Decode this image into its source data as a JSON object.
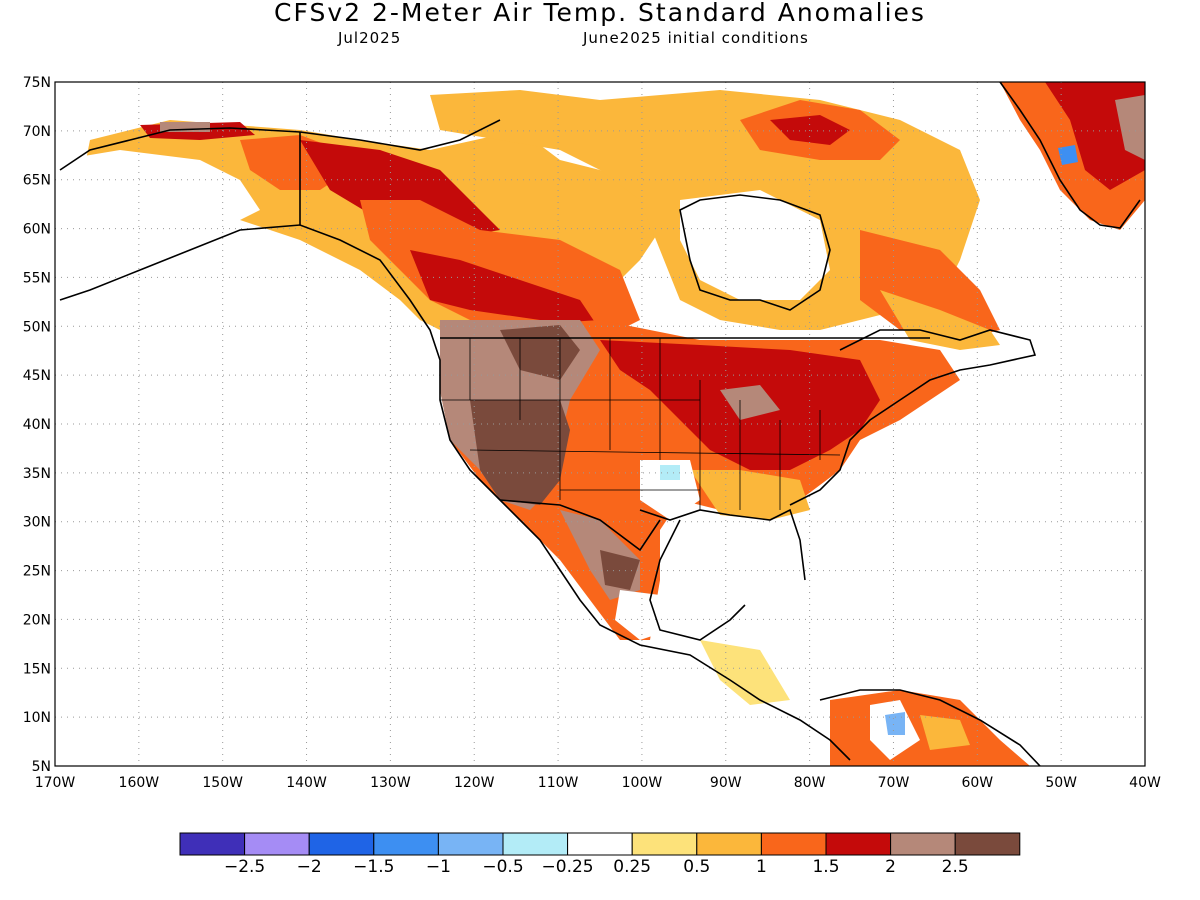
{
  "header": {
    "title": "CFSv2 2-Meter Air Temp. Standard Anomalies",
    "month": "Jul2025",
    "init": "June2025 initial conditions"
  },
  "axes": {
    "lat_labels": [
      "75N",
      "70N",
      "65N",
      "60N",
      "55N",
      "50N",
      "45N",
      "40N",
      "35N",
      "30N",
      "25N",
      "20N",
      "15N",
      "10N",
      "5N"
    ],
    "lon_labels": [
      "170W",
      "160W",
      "150W",
      "140W",
      "130W",
      "120W",
      "110W",
      "100W",
      "90W",
      "80W",
      "70W",
      "60W",
      "50W",
      "40W"
    ],
    "lat_range": [
      5,
      75
    ],
    "lon_range": [
      -170,
      -40
    ],
    "grid": "dotted"
  },
  "legend": {
    "colors": [
      "#3f2fb8",
      "#a58cf5",
      "#1f64e6",
      "#3d8ff2",
      "#78b4f5",
      "#b3ecf7",
      "#ffffff",
      "#fde27a",
      "#fbb73b",
      "#f9661b",
      "#c40a0a",
      "#b58879",
      "#7a4a3c"
    ],
    "labels": [
      "−2.5",
      "−2",
      "−1.5",
      "−1",
      "−0.5",
      "−0.25",
      "0.25",
      "0.5",
      "1",
      "1.5",
      "2",
      "2.5"
    ]
  },
  "regions": [
    {
      "name": "alaska-interior",
      "color": "#ffffff"
    },
    {
      "name": "western-canada",
      "color": "#f9661b"
    },
    {
      "name": "northern-canada",
      "color": "#fbb73b"
    },
    {
      "name": "hudson-bay",
      "color": "#ffffff"
    },
    {
      "name": "us-southwest",
      "color": "#7a4a3c"
    },
    {
      "name": "us-midwest-east",
      "color": "#c40a0a"
    },
    {
      "name": "greenland",
      "color": "#c40a0a"
    },
    {
      "name": "southeast-us",
      "color": "#fde27a"
    }
  ]
}
